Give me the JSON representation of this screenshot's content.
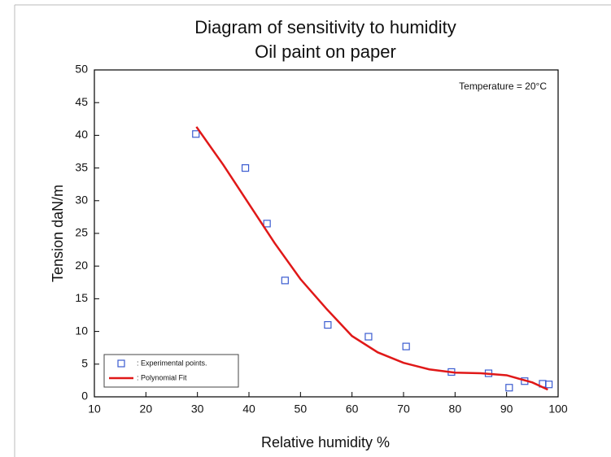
{
  "chart_data": {
    "type": "scatter",
    "title": "Diagram of sensitivity to humidity",
    "subtitle": "Oil paint on paper",
    "x_label": "Relative humidity %",
    "y_label": "Tension daN/m",
    "annotation": "Temperature = 20°C",
    "xlim": [
      10,
      100
    ],
    "xticks": [
      10,
      20,
      30,
      40,
      50,
      60,
      70,
      80,
      90,
      100
    ],
    "ylim": [
      0,
      50
    ],
    "yticks": [
      0,
      5,
      10,
      15,
      20,
      25,
      30,
      35,
      40,
      45,
      50
    ],
    "legend": "lower left",
    "series": [
      {
        "name": ": Experimental points.",
        "type": "scatter",
        "color": "#3a5bd0",
        "x": [
          29.7,
          39.3,
          43.5,
          47,
          55.3,
          63.2,
          70.5,
          79.3,
          86.5,
          90.5,
          93.5,
          97,
          98.2
        ],
        "values": [
          40.2,
          35,
          26.5,
          17.8,
          11,
          9.2,
          7.7,
          3.8,
          3.6,
          1.4,
          2.4,
          2,
          1.9
        ]
      },
      {
        "name": ": Polynomial Fit",
        "type": "line",
        "color": "#e01818",
        "x": [
          29.8,
          35,
          40,
          45,
          50,
          55,
          60,
          65,
          70,
          75,
          80,
          85,
          90,
          95,
          98
        ],
        "values": [
          41.3,
          35.5,
          29.5,
          23.5,
          18,
          13.5,
          9.3,
          6.8,
          5.2,
          4.2,
          3.7,
          3.6,
          3.3,
          2.2,
          1.1
        ]
      }
    ]
  }
}
